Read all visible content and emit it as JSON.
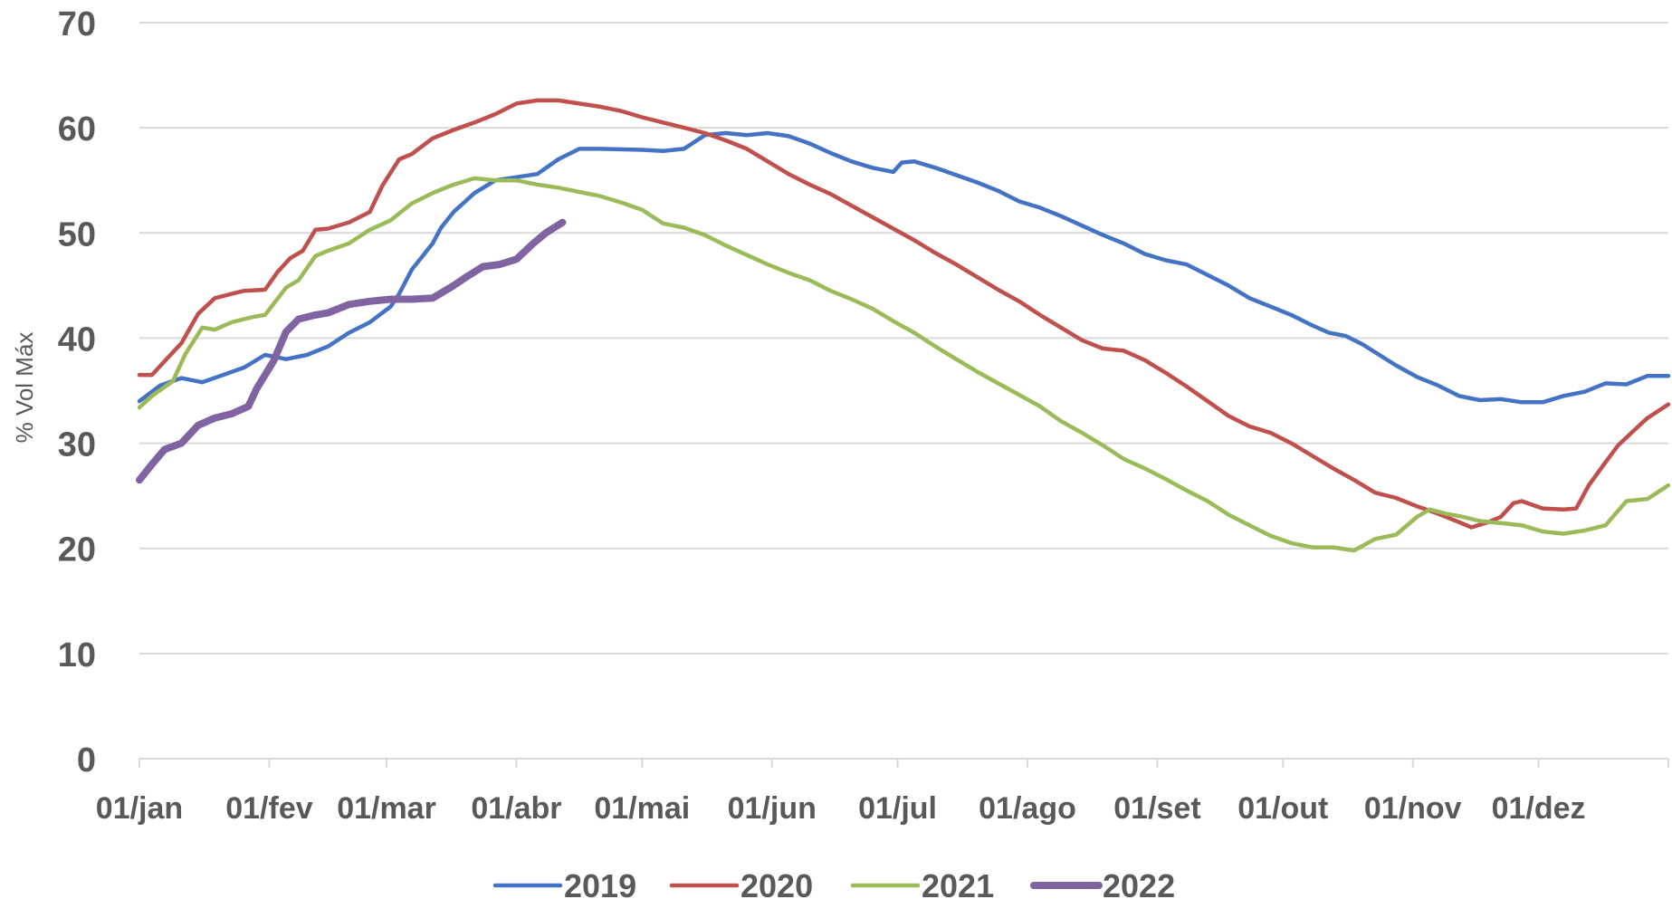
{
  "chart_data": {
    "type": "line",
    "title": "",
    "xlabel": "",
    "ylabel": "% Vol Máx",
    "ylim": [
      0,
      70
    ],
    "yticks": [
      0,
      10,
      20,
      30,
      40,
      50,
      60,
      70
    ],
    "xlim": [
      0,
      365
    ],
    "x_unit": "day of year",
    "x_ticks": [
      {
        "label": "01/jan",
        "day": 0
      },
      {
        "label": "01/fev",
        "day": 31
      },
      {
        "label": "01/mar",
        "day": 59
      },
      {
        "label": "01/abr",
        "day": 90
      },
      {
        "label": "01/mai",
        "day": 120
      },
      {
        "label": "01/jun",
        "day": 151
      },
      {
        "label": "01/jul",
        "day": 181
      },
      {
        "label": "01/ago",
        "day": 212
      },
      {
        "label": "01/set",
        "day": 243
      },
      {
        "label": "01/out",
        "day": 273
      },
      {
        "label": "01/nov",
        "day": 304
      },
      {
        "label": "01/dez",
        "day": 334
      }
    ],
    "grid": "horizontal",
    "legend_position": "bottom",
    "series": [
      {
        "name": "2019",
        "color": "#4472C4",
        "points": [
          [
            0,
            34.0
          ],
          [
            5,
            35.5
          ],
          [
            10,
            36.2
          ],
          [
            15,
            35.8
          ],
          [
            20,
            36.5
          ],
          [
            25,
            37.2
          ],
          [
            30,
            38.4
          ],
          [
            35,
            38.0
          ],
          [
            40,
            38.4
          ],
          [
            45,
            39.2
          ],
          [
            50,
            40.5
          ],
          [
            55,
            41.5
          ],
          [
            60,
            43.0
          ],
          [
            62,
            44.2
          ],
          [
            65,
            46.5
          ],
          [
            68,
            48.0
          ],
          [
            70,
            49.0
          ],
          [
            72,
            50.5
          ],
          [
            75,
            52.0
          ],
          [
            80,
            53.8
          ],
          [
            85,
            55.0
          ],
          [
            90,
            55.3
          ],
          [
            95,
            55.6
          ],
          [
            100,
            57.0
          ],
          [
            105,
            58.0
          ],
          [
            110,
            58.0
          ],
          [
            120,
            57.9
          ],
          [
            125,
            57.8
          ],
          [
            130,
            58.0
          ],
          [
            135,
            59.3
          ],
          [
            140,
            59.5
          ],
          [
            145,
            59.3
          ],
          [
            150,
            59.5
          ],
          [
            155,
            59.2
          ],
          [
            160,
            58.5
          ],
          [
            165,
            57.6
          ],
          [
            170,
            56.8
          ],
          [
            175,
            56.2
          ],
          [
            180,
            55.8
          ],
          [
            182,
            56.7
          ],
          [
            185,
            56.8
          ],
          [
            190,
            56.2
          ],
          [
            195,
            55.5
          ],
          [
            200,
            54.8
          ],
          [
            205,
            54.0
          ],
          [
            210,
            53.0
          ],
          [
            215,
            52.4
          ],
          [
            220,
            51.6
          ],
          [
            225,
            50.7
          ],
          [
            230,
            49.8
          ],
          [
            235,
            49.0
          ],
          [
            240,
            48.0
          ],
          [
            245,
            47.4
          ],
          [
            250,
            47.0
          ],
          [
            255,
            46.0
          ],
          [
            260,
            45.0
          ],
          [
            265,
            43.8
          ],
          [
            270,
            43.0
          ],
          [
            275,
            42.2
          ],
          [
            280,
            41.2
          ],
          [
            284,
            40.5
          ],
          [
            288,
            40.2
          ],
          [
            292,
            39.4
          ],
          [
            296,
            38.4
          ],
          [
            300,
            37.4
          ],
          [
            305,
            36.3
          ],
          [
            310,
            35.5
          ],
          [
            315,
            34.5
          ],
          [
            320,
            34.1
          ],
          [
            325,
            34.2
          ],
          [
            330,
            33.9
          ],
          [
            335,
            33.9
          ],
          [
            340,
            34.5
          ],
          [
            345,
            34.9
          ],
          [
            350,
            35.7
          ],
          [
            355,
            35.6
          ],
          [
            360,
            36.4
          ],
          [
            365,
            36.4
          ]
        ]
      },
      {
        "name": "2020",
        "color": "#C0504D",
        "points": [
          [
            0,
            36.5
          ],
          [
            3,
            36.5
          ],
          [
            6,
            37.8
          ],
          [
            10,
            39.5
          ],
          [
            14,
            42.3
          ],
          [
            18,
            43.8
          ],
          [
            22,
            44.2
          ],
          [
            25,
            44.5
          ],
          [
            30,
            44.6
          ],
          [
            33,
            46.3
          ],
          [
            36,
            47.6
          ],
          [
            39,
            48.3
          ],
          [
            42,
            50.3
          ],
          [
            45,
            50.4
          ],
          [
            50,
            51.0
          ],
          [
            55,
            52.0
          ],
          [
            58,
            54.5
          ],
          [
            62,
            57.0
          ],
          [
            65,
            57.5
          ],
          [
            70,
            59.0
          ],
          [
            75,
            59.8
          ],
          [
            80,
            60.5
          ],
          [
            85,
            61.3
          ],
          [
            90,
            62.3
          ],
          [
            95,
            62.6
          ],
          [
            100,
            62.6
          ],
          [
            105,
            62.3
          ],
          [
            110,
            62.0
          ],
          [
            115,
            61.6
          ],
          [
            120,
            61.0
          ],
          [
            125,
            60.5
          ],
          [
            130,
            60.0
          ],
          [
            135,
            59.5
          ],
          [
            140,
            58.8
          ],
          [
            145,
            58.0
          ],
          [
            150,
            56.8
          ],
          [
            155,
            55.6
          ],
          [
            160,
            54.6
          ],
          [
            165,
            53.7
          ],
          [
            170,
            52.6
          ],
          [
            175,
            51.5
          ],
          [
            180,
            50.4
          ],
          [
            185,
            49.3
          ],
          [
            190,
            48.1
          ],
          [
            195,
            47.0
          ],
          [
            200,
            45.8
          ],
          [
            205,
            44.6
          ],
          [
            210,
            43.5
          ],
          [
            215,
            42.2
          ],
          [
            220,
            41.0
          ],
          [
            225,
            39.8
          ],
          [
            230,
            39.0
          ],
          [
            235,
            38.8
          ],
          [
            240,
            37.9
          ],
          [
            245,
            36.7
          ],
          [
            250,
            35.4
          ],
          [
            255,
            34.0
          ],
          [
            260,
            32.6
          ],
          [
            265,
            31.6
          ],
          [
            270,
            31.0
          ],
          [
            275,
            30.0
          ],
          [
            280,
            28.8
          ],
          [
            285,
            27.6
          ],
          [
            290,
            26.5
          ],
          [
            295,
            25.3
          ],
          [
            300,
            24.8
          ],
          [
            305,
            24.0
          ],
          [
            310,
            23.3
          ],
          [
            315,
            22.5
          ],
          [
            318,
            22.0
          ],
          [
            322,
            22.5
          ],
          [
            325,
            23.0
          ],
          [
            328,
            24.3
          ],
          [
            330,
            24.5
          ],
          [
            335,
            23.8
          ],
          [
            340,
            23.7
          ],
          [
            343,
            23.8
          ],
          [
            346,
            26.0
          ],
          [
            350,
            28.2
          ],
          [
            353,
            29.8
          ],
          [
            357,
            31.3
          ],
          [
            360,
            32.4
          ],
          [
            365,
            33.7
          ]
        ]
      },
      {
        "name": "2021",
        "color": "#9BBB59",
        "points": [
          [
            0,
            33.4
          ],
          [
            3,
            34.5
          ],
          [
            8,
            35.9
          ],
          [
            11,
            38.5
          ],
          [
            15,
            41.0
          ],
          [
            18,
            40.8
          ],
          [
            22,
            41.5
          ],
          [
            27,
            42.0
          ],
          [
            30,
            42.2
          ],
          [
            35,
            44.8
          ],
          [
            38,
            45.5
          ],
          [
            42,
            47.8
          ],
          [
            45,
            48.3
          ],
          [
            50,
            49.0
          ],
          [
            55,
            50.3
          ],
          [
            60,
            51.2
          ],
          [
            65,
            52.8
          ],
          [
            70,
            53.8
          ],
          [
            75,
            54.6
          ],
          [
            80,
            55.2
          ],
          [
            85,
            55.0
          ],
          [
            90,
            55.0
          ],
          [
            95,
            54.6
          ],
          [
            100,
            54.3
          ],
          [
            105,
            53.9
          ],
          [
            110,
            53.5
          ],
          [
            115,
            52.9
          ],
          [
            120,
            52.2
          ],
          [
            125,
            50.9
          ],
          [
            130,
            50.5
          ],
          [
            135,
            49.8
          ],
          [
            140,
            48.8
          ],
          [
            145,
            47.9
          ],
          [
            150,
            47.0
          ],
          [
            155,
            46.2
          ],
          [
            160,
            45.5
          ],
          [
            165,
            44.5
          ],
          [
            170,
            43.7
          ],
          [
            175,
            42.8
          ],
          [
            180,
            41.6
          ],
          [
            185,
            40.5
          ],
          [
            190,
            39.2
          ],
          [
            195,
            38.0
          ],
          [
            200,
            36.8
          ],
          [
            205,
            35.7
          ],
          [
            210,
            34.6
          ],
          [
            215,
            33.5
          ],
          [
            220,
            32.1
          ],
          [
            225,
            31.0
          ],
          [
            230,
            29.8
          ],
          [
            235,
            28.5
          ],
          [
            240,
            27.6
          ],
          [
            245,
            26.6
          ],
          [
            250,
            25.5
          ],
          [
            255,
            24.5
          ],
          [
            260,
            23.2
          ],
          [
            265,
            22.2
          ],
          [
            270,
            21.2
          ],
          [
            275,
            20.5
          ],
          [
            280,
            20.1
          ],
          [
            285,
            20.1
          ],
          [
            290,
            19.8
          ],
          [
            295,
            20.9
          ],
          [
            300,
            21.3
          ],
          [
            305,
            23.0
          ],
          [
            308,
            23.7
          ],
          [
            312,
            23.3
          ],
          [
            316,
            23.0
          ],
          [
            320,
            22.6
          ],
          [
            325,
            22.4
          ],
          [
            330,
            22.2
          ],
          [
            335,
            21.6
          ],
          [
            340,
            21.4
          ],
          [
            345,
            21.7
          ],
          [
            350,
            22.2
          ],
          [
            355,
            24.5
          ],
          [
            360,
            24.7
          ],
          [
            365,
            26.0
          ]
        ]
      },
      {
        "name": "2022",
        "color": "#8064A2",
        "points": [
          [
            0,
            26.5
          ],
          [
            3,
            28.0
          ],
          [
            6,
            29.4
          ],
          [
            10,
            30.0
          ],
          [
            14,
            31.7
          ],
          [
            18,
            32.4
          ],
          [
            22,
            32.8
          ],
          [
            26,
            33.5
          ],
          [
            28,
            35.2
          ],
          [
            32,
            37.8
          ],
          [
            35,
            40.6
          ],
          [
            38,
            41.8
          ],
          [
            42,
            42.2
          ],
          [
            45,
            42.4
          ],
          [
            50,
            43.2
          ],
          [
            55,
            43.5
          ],
          [
            60,
            43.7
          ],
          [
            65,
            43.7
          ],
          [
            70,
            43.8
          ],
          [
            75,
            45.0
          ],
          [
            78,
            45.8
          ],
          [
            82,
            46.8
          ],
          [
            86,
            47.0
          ],
          [
            90,
            47.5
          ],
          [
            94,
            49.0
          ],
          [
            97,
            50.0
          ],
          [
            101,
            51.0
          ]
        ]
      }
    ]
  }
}
